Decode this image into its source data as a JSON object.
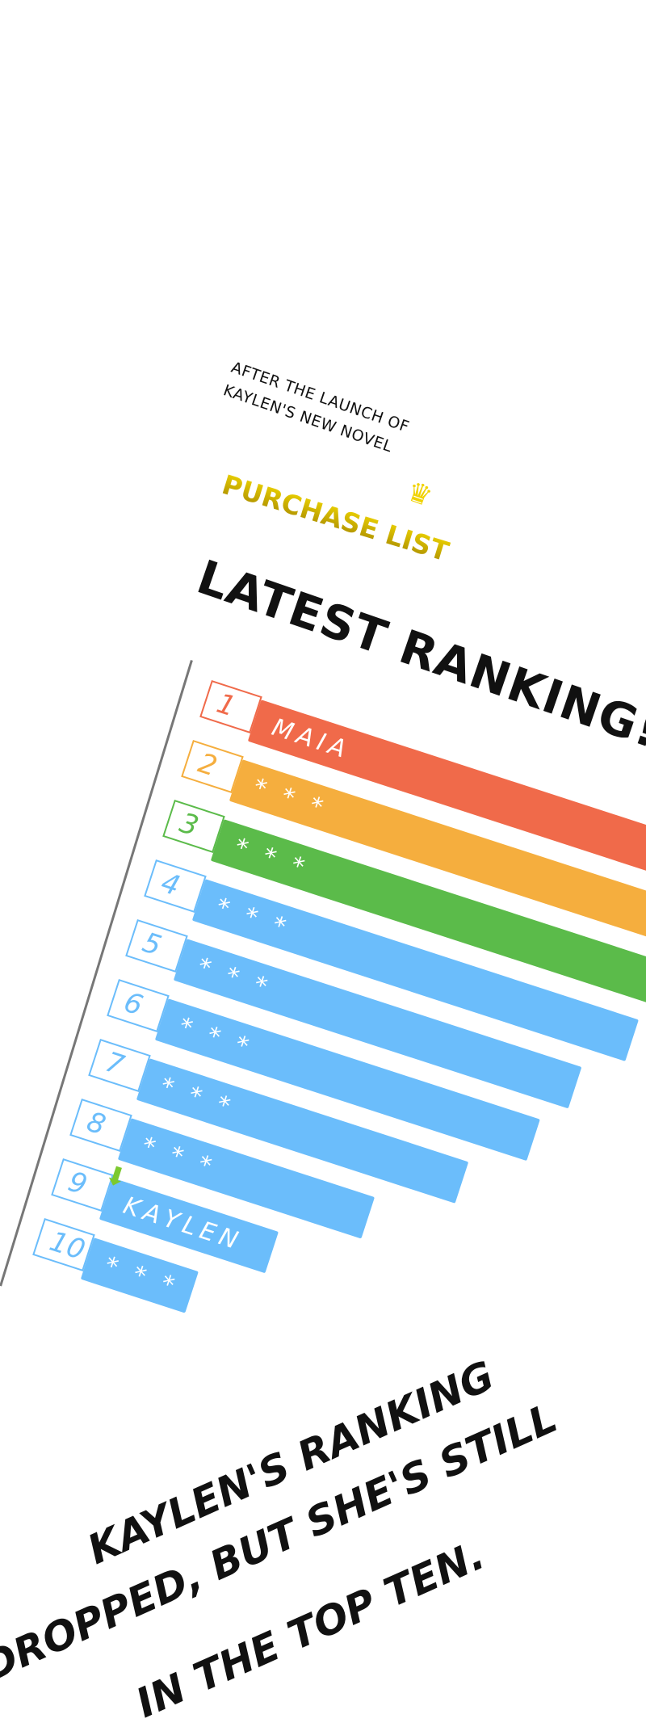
{
  "header": {
    "subtitle_line1": "After the launch of",
    "subtitle_line2": "Kaylen's new novel",
    "purchase_list": "PURCHASE LIST",
    "crown_icon": "crown",
    "ranking_title": "LATEST RANKING!"
  },
  "ranking": [
    {
      "rank": "1",
      "name": "MAIA",
      "color": "#F06A4A",
      "length": 900
    },
    {
      "rank": "2",
      "name": "* * *",
      "color": "#F5AE3E",
      "length": 900
    },
    {
      "rank": "3",
      "name": "* * *",
      "color": "#5BBB4A",
      "length": 900
    },
    {
      "rank": "4",
      "name": "* * *",
      "color": "#6BBDFB",
      "length": 630
    },
    {
      "rank": "5",
      "name": "* * *",
      "color": "#6BBDFB",
      "length": 580
    },
    {
      "rank": "6",
      "name": "* * *",
      "color": "#6BBDFB",
      "length": 550
    },
    {
      "rank": "7",
      "name": "* * *",
      "color": "#6BBDFB",
      "length": 481
    },
    {
      "rank": "8",
      "name": "* * *",
      "color": "#6BBDFB",
      "length": 383
    },
    {
      "rank": "9",
      "name": "KAYLEN",
      "color": "#6BBDFB",
      "length": 282,
      "indicator": "down-arrow"
    },
    {
      "rank": "10",
      "name": "* * *",
      "color": "#6BBDFB",
      "length": 202
    }
  ],
  "caption": {
    "line1": "KAYLEN'S RANKING",
    "line2": "DROPPED, BUT SHE'S STILL",
    "line3": "IN THE TOP TEN."
  }
}
